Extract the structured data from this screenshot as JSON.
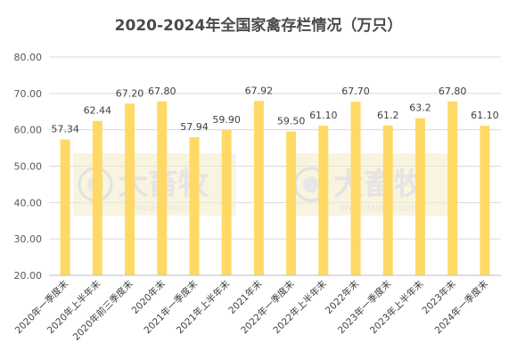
{
  "chart_data": {
    "type": "bar",
    "title": "2020-2024年全国家禽存栏情况（万只）",
    "categories": [
      "2020年一季度末",
      "2020年上半年末",
      "2020年前三季度末",
      "2020年末",
      "2021年一季度末",
      "2021年上半年末",
      "2021年末",
      "2022年一季度末",
      "2022年上半年末",
      "2022年末",
      "2023年一季度末",
      "2023年上半年末",
      "2023年末",
      "2024年一季度末"
    ],
    "values": [
      57.34,
      62.44,
      67.2,
      67.8,
      57.94,
      59.9,
      67.92,
      59.5,
      61.1,
      67.7,
      61.2,
      63.2,
      67.8,
      61.1
    ],
    "value_labels": [
      "57.34",
      "62.44",
      "67.20",
      "67.80",
      "57.94",
      "59.90",
      "67.92",
      "59.50",
      "61.10",
      "67.70",
      "61.2",
      "63.2",
      "67.80",
      "61.10"
    ],
    "ylim": [
      20,
      80
    ],
    "yticks": [
      "20.00",
      "30.00",
      "40.00",
      "50.00",
      "60.00",
      "70.00",
      "80.00"
    ],
    "ytick_values": [
      20,
      30,
      40,
      50,
      60,
      70,
      80
    ],
    "grid": true,
    "bar_color": "#FFD966",
    "watermark": {
      "brand": "大畜牧",
      "url": "www.dxumu.com"
    }
  }
}
